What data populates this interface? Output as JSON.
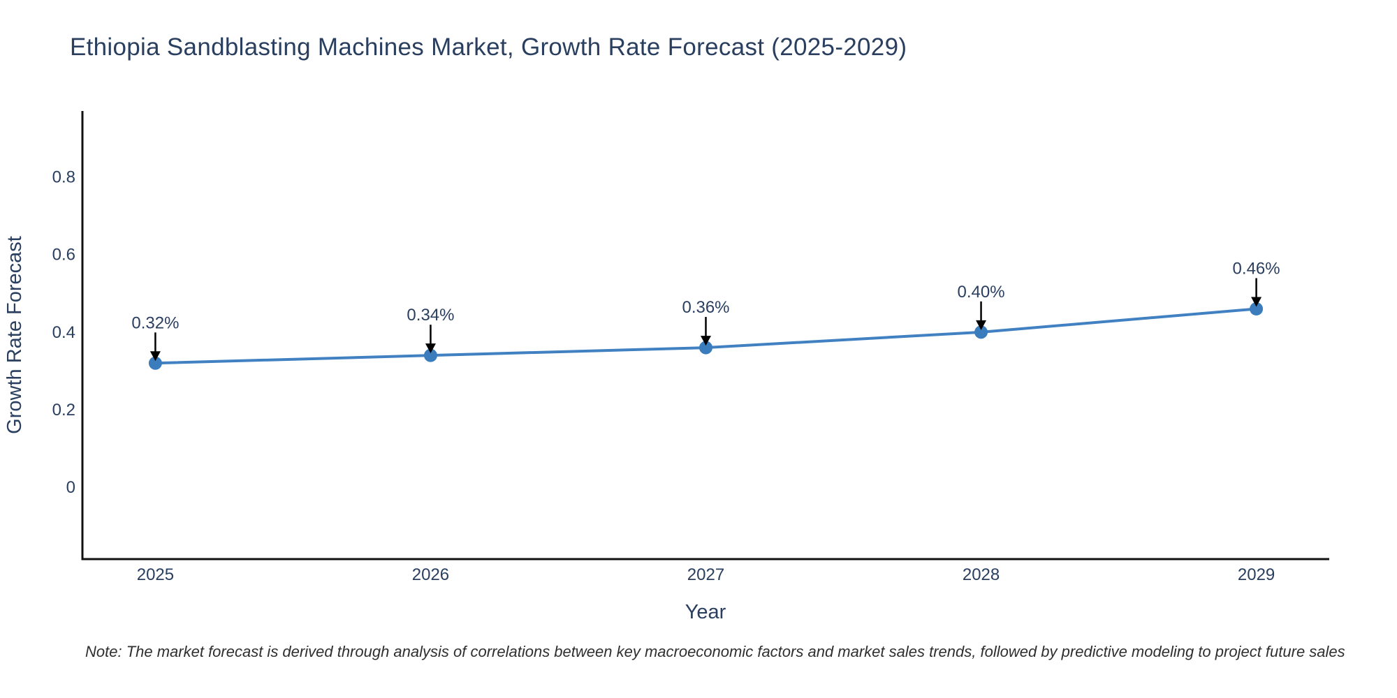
{
  "chart_data": {
    "type": "line",
    "title": "Ethiopia Sandblasting Machines Market, Growth Rate Forecast (2025-2029)",
    "xlabel": "Year",
    "ylabel": "Growth Rate Forecast",
    "x": [
      2025,
      2026,
      2027,
      2028,
      2029
    ],
    "series": [
      {
        "name": "Growth Rate Forecast",
        "values": [
          0.32,
          0.34,
          0.36,
          0.4,
          0.46
        ]
      }
    ],
    "point_labels": [
      "0.32%",
      "0.34%",
      "0.36%",
      "0.40%",
      "0.46%"
    ],
    "yticks": [
      0,
      0.2,
      0.4,
      0.6,
      0.8
    ],
    "ytick_labels": [
      "0",
      "0.2",
      "0.4",
      "0.6",
      "0.8"
    ],
    "ylim": [
      -0.185,
      0.97
    ],
    "xlim": [
      2024.735,
      2029.265
    ],
    "grid": false,
    "legend_position": "none",
    "line_color": "#4181c1",
    "marker_color": "#3a7cbc",
    "annotation_arrow_color": "#000000",
    "axis_line_color": "#111111",
    "font_color": "#2a3f5f"
  },
  "note": {
    "text": "Note: The market forecast is derived through analysis of correlations between key macroeconomic factors and market sales trends, followed by predictive modeling to project future sales"
  }
}
